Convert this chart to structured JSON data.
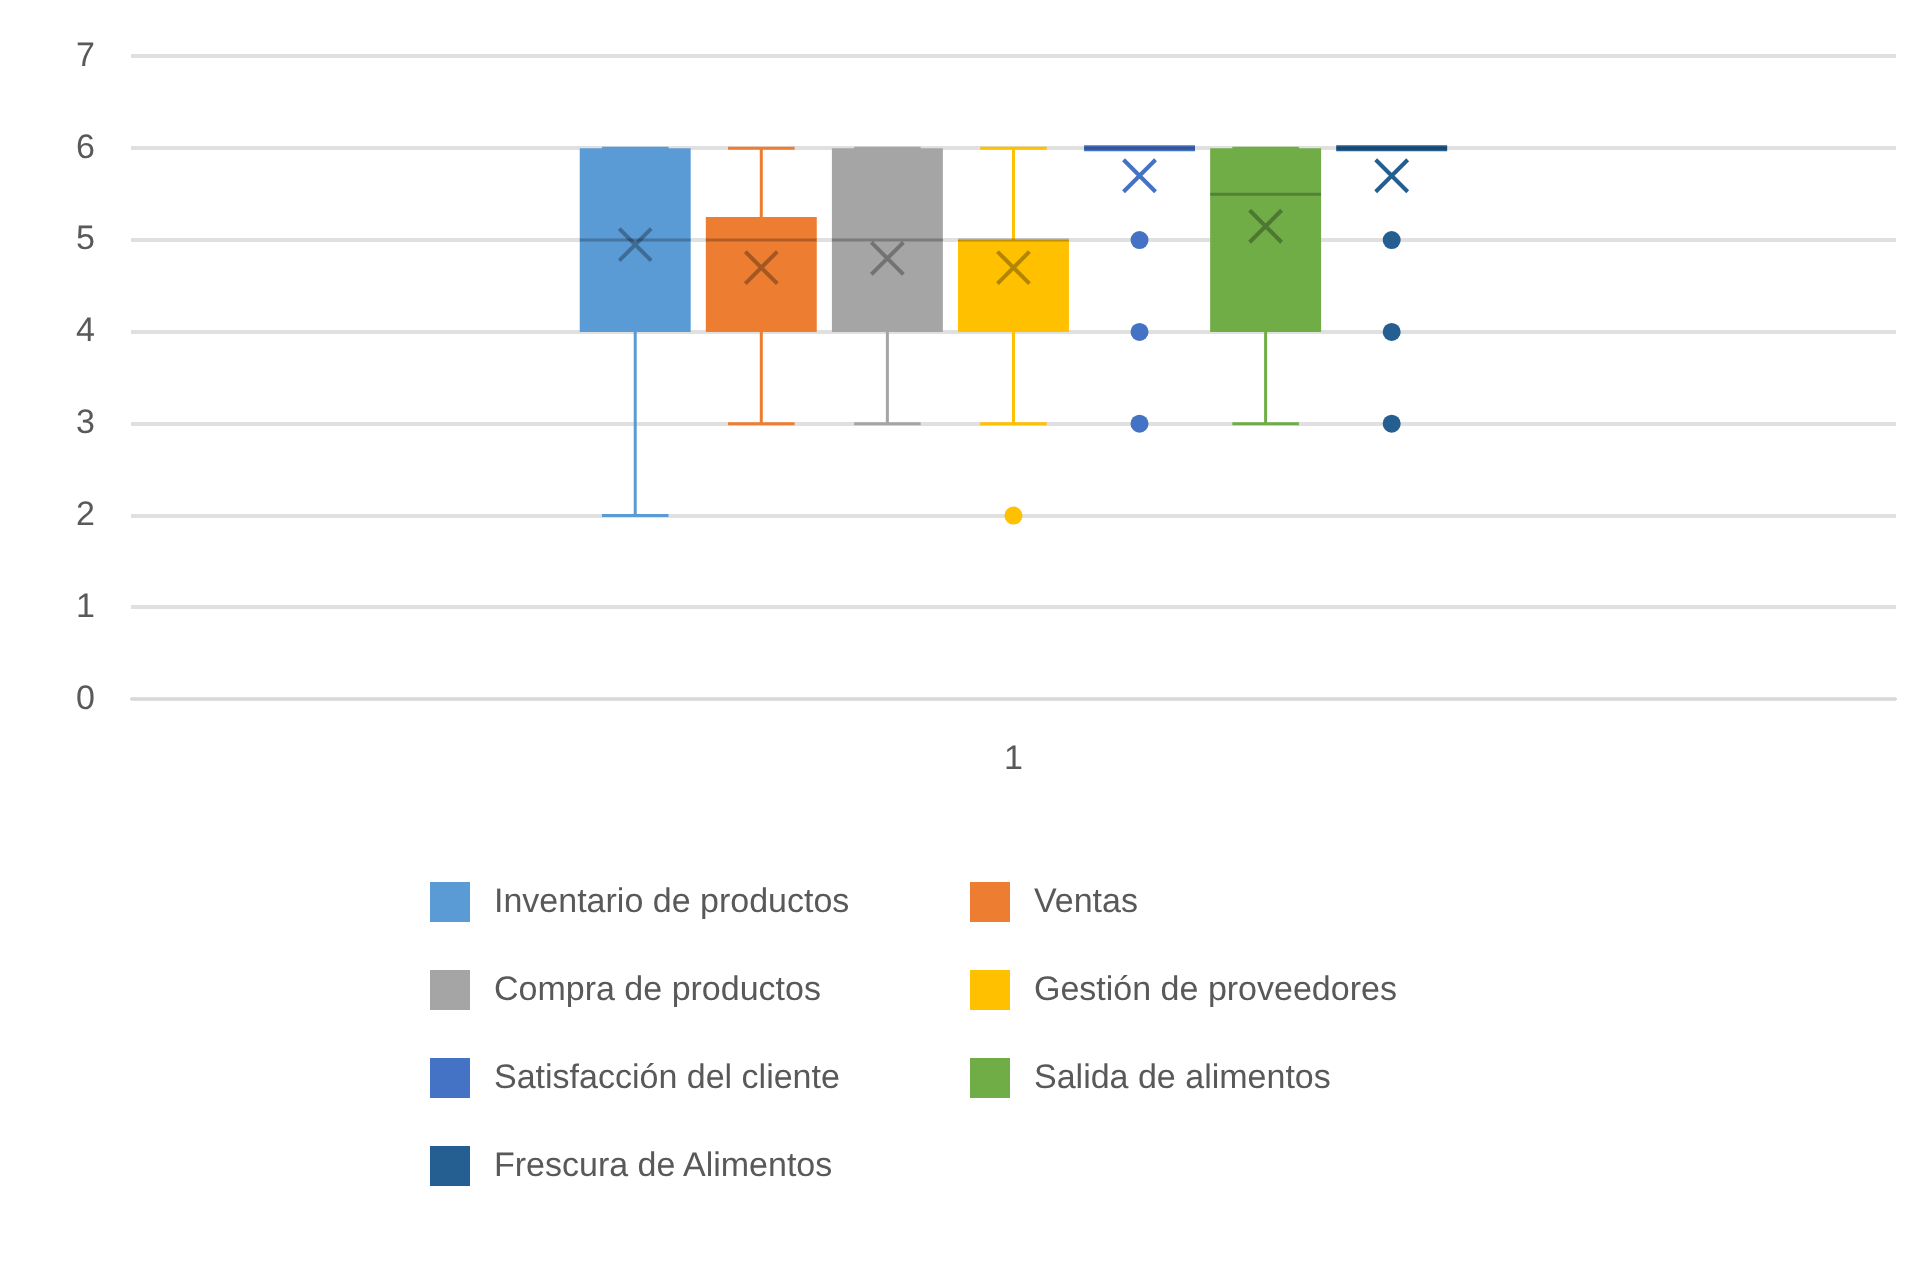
{
  "chart_data": {
    "type": "box",
    "categories": [
      "1"
    ],
    "ylim": [
      0,
      7
    ],
    "yticks": [
      0,
      1,
      2,
      3,
      4,
      5,
      6,
      7
    ],
    "grid": "y",
    "legend": "bottom",
    "series": [
      {
        "name": "Inventario de productos",
        "color": "#5b9bd5",
        "boxes": [
          {
            "low": 2,
            "q1": 4,
            "median": 5,
            "q3": 6,
            "high": 6,
            "mean": 4.95
          }
        ]
      },
      {
        "name": "Ventas",
        "color": "#ed7d31",
        "boxes": [
          {
            "low": 3,
            "q1": 4,
            "median": 5,
            "q3": 5.25,
            "high": 6,
            "mean": 4.7
          }
        ]
      },
      {
        "name": "Compra de productos",
        "color": "#a5a5a5",
        "boxes": [
          {
            "low": 3,
            "q1": 4,
            "median": 5,
            "q3": 6,
            "high": 6,
            "mean": 4.8
          }
        ]
      },
      {
        "name": "Gestión de proveedores",
        "color": "#ffc000",
        "boxes": [
          {
            "low": 3,
            "q1": 4,
            "median": 5,
            "q3": 5,
            "high": 6,
            "mean": 4.7,
            "outliers": [
              2
            ]
          }
        ]
      },
      {
        "name": "Satisfacción del cliente",
        "color": "#4472c4",
        "boxes": [
          {
            "low": 6,
            "q1": 6,
            "median": 6,
            "q3": 6,
            "high": 6,
            "mean": 5.7,
            "outliers": [
              5,
              4,
              3
            ]
          }
        ]
      },
      {
        "name": "Salida de alimentos",
        "color": "#70ad47",
        "boxes": [
          {
            "low": 3,
            "q1": 4,
            "median": 5.5,
            "q3": 6,
            "high": 6,
            "mean": 5.15
          }
        ]
      },
      {
        "name": "Frescura de Alimentos",
        "color": "#255e91",
        "boxes": [
          {
            "low": 6,
            "q1": 6,
            "median": 6,
            "q3": 6,
            "high": 6,
            "mean": 5.7,
            "outliers": [
              5,
              4,
              3
            ]
          }
        ]
      }
    ]
  }
}
